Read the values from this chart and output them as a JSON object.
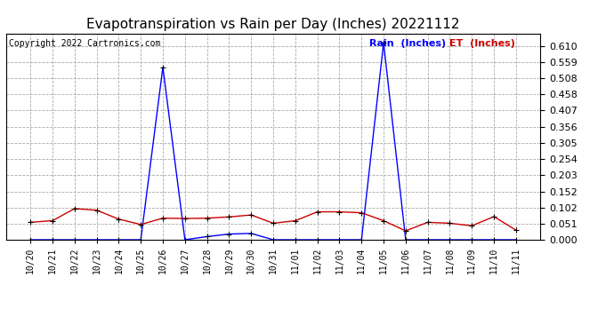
{
  "title": "Evapotranspiration vs Rain per Day (Inches) 20221112",
  "copyright_text": "Copyright 2022 Cartronics.com",
  "legend_rain": "Rain  (Inches)",
  "legend_et": "ET  (Inches)",
  "x_labels": [
    "10/20",
    "10/21",
    "10/22",
    "10/23",
    "10/24",
    "10/25",
    "10/26",
    "10/27",
    "10/28",
    "10/29",
    "10/30",
    "10/31",
    "11/01",
    "11/02",
    "11/03",
    "11/04",
    "11/05",
    "11/06",
    "11/07",
    "11/08",
    "11/09",
    "11/10",
    "11/11"
  ],
  "rain_values": [
    0.0,
    0.0,
    0.0,
    0.0,
    0.0,
    0.0,
    0.543,
    0.0,
    0.01,
    0.018,
    0.02,
    0.0,
    0.0,
    0.0,
    0.0,
    0.0,
    0.62,
    0.0,
    0.0,
    0.0,
    0.0,
    0.0,
    0.0
  ],
  "et_values": [
    0.055,
    0.06,
    0.098,
    0.093,
    0.065,
    0.048,
    0.068,
    0.067,
    0.068,
    0.072,
    0.078,
    0.052,
    0.06,
    0.088,
    0.088,
    0.085,
    0.06,
    0.028,
    0.055,
    0.052,
    0.044,
    0.073,
    0.03
  ],
  "rain_color": "#0000FF",
  "et_color": "#CC0000",
  "marker_color": "#000000",
  "ylim": [
    0.0,
    0.65
  ],
  "yticks": [
    0.0,
    0.051,
    0.102,
    0.152,
    0.203,
    0.254,
    0.305,
    0.356,
    0.407,
    0.458,
    0.508,
    0.559,
    0.61
  ],
  "background_color": "#ffffff",
  "grid_color": "#aaaaaa",
  "title_fontsize": 11,
  "copyright_fontsize": 7,
  "tick_fontsize": 7,
  "ytick_fontsize": 8,
  "legend_fontsize": 8
}
